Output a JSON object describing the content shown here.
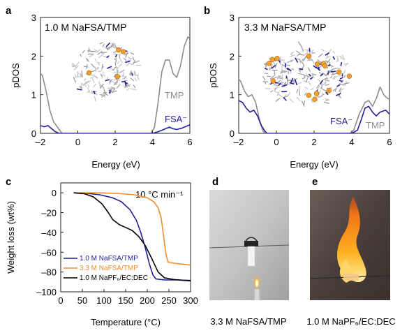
{
  "panels": {
    "a": {
      "letter": "a",
      "title": "1.0 M NaFSA/TMP",
      "xlabel": "Energy (eV)",
      "ylabel": "pDOS",
      "xticks": [
        "–2",
        "0",
        "2",
        "4",
        "6"
      ],
      "yticks": [
        "0",
        "1",
        "2",
        "3"
      ],
      "labels": {
        "tmp": "TMP",
        "fsa": "FSA⁻"
      }
    },
    "b": {
      "letter": "b",
      "title": "3.3 M NaFSA/TMP",
      "xlabel": "Energy (eV)",
      "ylabel": "pDOS",
      "xticks": [
        "–2",
        "0",
        "2",
        "4",
        "6"
      ],
      "yticks": [
        "0",
        "1",
        "2",
        "3"
      ],
      "labels": {
        "tmp": "TMP",
        "fsa": "FSA⁻"
      }
    },
    "c": {
      "letter": "c",
      "annotation": "10 °C min⁻¹",
      "xlabel": "Temperature (°C)",
      "ylabel": "Weight loss (wt%)",
      "xticks": [
        "0",
        "50",
        "100",
        "150",
        "200",
        "250",
        "300"
      ],
      "yticks": [
        "0",
        "–20",
        "–40",
        "–60",
        "–80",
        "–100"
      ],
      "legend": [
        "1.0 M NaFSA/TMP",
        "3.3 M NaFSA/TMP",
        "1.0 M NaPF₆/EC:DEC"
      ]
    },
    "d": {
      "letter": "d",
      "caption": "3.3 M NaFSA/TMP"
    },
    "e": {
      "letter": "e",
      "caption": "1.0 M NaPF₆/EC:DEC"
    }
  },
  "colors": {
    "tmp": "#8c8c8c",
    "fsa": "#1f1f9a",
    "navy": "#1f1f9a",
    "orange": "#f28c28",
    "black": "#000000"
  },
  "chart_data": [
    {
      "type": "line",
      "panel": "a",
      "title": "1.0 M NaFSA/TMP",
      "xlabel": "Energy (eV)",
      "ylabel": "pDOS",
      "xlim": [
        -2,
        6
      ],
      "ylim": [
        0,
        3
      ],
      "series": [
        {
          "name": "TMP",
          "color": "#8c8c8c",
          "points": [
            [
              -2.2,
              1.7
            ],
            [
              -2.0,
              1.55
            ],
            [
              -1.9,
              1.5
            ],
            [
              -1.7,
              1.1
            ],
            [
              -1.5,
              0.6
            ],
            [
              -1.3,
              0.3
            ],
            [
              -1.0,
              0.1
            ],
            [
              -0.85,
              0.0
            ],
            [
              3.9,
              0.0
            ],
            [
              4.1,
              0.15
            ],
            [
              4.3,
              0.8
            ],
            [
              4.5,
              1.6
            ],
            [
              4.7,
              1.9
            ],
            [
              4.9,
              1.9
            ],
            [
              5.1,
              1.55
            ],
            [
              5.3,
              1.45
            ],
            [
              5.5,
              1.75
            ],
            [
              5.7,
              2.25
            ],
            [
              5.9,
              2.5
            ],
            [
              6.0,
              2.45
            ]
          ]
        },
        {
          "name": "FSA⁻",
          "color": "#1f1f9a",
          "points": [
            [
              -2.2,
              0.25
            ],
            [
              -2.0,
              0.2
            ],
            [
              -1.8,
              0.17
            ],
            [
              -1.6,
              0.2
            ],
            [
              -1.4,
              0.12
            ],
            [
              -1.2,
              0.04
            ],
            [
              -1.0,
              0.0
            ],
            [
              4.0,
              0.0
            ],
            [
              4.3,
              0.04
            ],
            [
              4.6,
              0.1
            ],
            [
              4.9,
              0.16
            ],
            [
              5.1,
              0.12
            ],
            [
              5.3,
              0.1
            ],
            [
              5.6,
              0.14
            ],
            [
              5.9,
              0.2
            ],
            [
              6.0,
              0.22
            ]
          ]
        }
      ]
    },
    {
      "type": "line",
      "panel": "b",
      "title": "3.3 M NaFSA/TMP",
      "xlabel": "Energy (eV)",
      "ylabel": "pDOS",
      "xlim": [
        -2,
        6
      ],
      "ylim": [
        0,
        3
      ],
      "series": [
        {
          "name": "TMP",
          "color": "#8c8c8c",
          "points": [
            [
              -2.2,
              1.1
            ],
            [
              -2.0,
              1.4
            ],
            [
              -1.9,
              1.35
            ],
            [
              -1.7,
              1.1
            ],
            [
              -1.5,
              0.95
            ],
            [
              -1.3,
              1.0
            ],
            [
              -1.1,
              0.8
            ],
            [
              -0.9,
              0.35
            ],
            [
              -0.7,
              0.05
            ],
            [
              -0.6,
              0.0
            ],
            [
              3.9,
              0.0
            ],
            [
              4.1,
              0.08
            ],
            [
              4.4,
              0.5
            ],
            [
              4.7,
              0.8
            ],
            [
              4.9,
              0.85
            ],
            [
              5.1,
              0.7
            ],
            [
              5.3,
              0.9
            ],
            [
              5.5,
              1.2
            ],
            [
              5.7,
              1.0
            ],
            [
              5.9,
              0.9
            ],
            [
              6.0,
              0.9
            ]
          ]
        },
        {
          "name": "FSA⁻",
          "color": "#1f1f9a",
          "points": [
            [
              -2.2,
              0.6
            ],
            [
              -2.0,
              0.85
            ],
            [
              -1.8,
              0.8
            ],
            [
              -1.6,
              0.65
            ],
            [
              -1.4,
              0.55
            ],
            [
              -1.2,
              0.6
            ],
            [
              -1.0,
              0.45
            ],
            [
              -0.8,
              0.2
            ],
            [
              -0.6,
              0.05
            ],
            [
              -0.5,
              0.0
            ],
            [
              4.0,
              0.0
            ],
            [
              4.3,
              0.08
            ],
            [
              4.5,
              0.35
            ],
            [
              4.7,
              0.65
            ],
            [
              4.9,
              0.7
            ],
            [
              5.1,
              0.55
            ],
            [
              5.3,
              0.45
            ],
            [
              5.5,
              0.55
            ],
            [
              5.8,
              0.6
            ],
            [
              6.0,
              0.5
            ]
          ]
        }
      ]
    },
    {
      "type": "line",
      "panel": "c",
      "xlabel": "Temperature (°C)",
      "ylabel": "Weight loss (wt%)",
      "xlim": [
        0,
        300
      ],
      "ylim": [
        -100,
        10
      ],
      "series": [
        {
          "name": "1.0 M NaFSA/TMP",
          "color": "#1f1f9a",
          "points": [
            [
              30,
              0
            ],
            [
              60,
              -0.5
            ],
            [
              90,
              -2
            ],
            [
              120,
              -5
            ],
            [
              140,
              -9
            ],
            [
              160,
              -17
            ],
            [
              175,
              -28
            ],
            [
              185,
              -40
            ],
            [
              195,
              -55
            ],
            [
              205,
              -72
            ],
            [
              213,
              -83
            ],
            [
              220,
              -87
            ],
            [
              240,
              -88
            ],
            [
              270,
              -88
            ],
            [
              300,
              -88.5
            ]
          ]
        },
        {
          "name": "3.3 M NaFSA/TMP",
          "color": "#f28c28",
          "points": [
            [
              30,
              0
            ],
            [
              80,
              0
            ],
            [
              130,
              -0.5
            ],
            [
              170,
              -2
            ],
            [
              200,
              -5
            ],
            [
              215,
              -9
            ],
            [
              225,
              -15
            ],
            [
              232,
              -25
            ],
            [
              238,
              -45
            ],
            [
              243,
              -62
            ],
            [
              248,
              -70
            ],
            [
              260,
              -71
            ],
            [
              280,
              -72
            ],
            [
              300,
              -73
            ]
          ]
        },
        {
          "name": "1.0 M NaPF₆/EC:DEC",
          "color": "#000000",
          "points": [
            [
              30,
              0
            ],
            [
              55,
              -1
            ],
            [
              75,
              -4
            ],
            [
              95,
              -11
            ],
            [
              110,
              -20
            ],
            [
              120,
              -27
            ],
            [
              135,
              -32
            ],
            [
              150,
              -35
            ],
            [
              165,
              -38
            ],
            [
              180,
              -44
            ],
            [
              195,
              -53
            ],
            [
              210,
              -66
            ],
            [
              225,
              -80
            ],
            [
              240,
              -86
            ],
            [
              260,
              -87.5
            ],
            [
              300,
              -89
            ]
          ]
        }
      ]
    }
  ]
}
